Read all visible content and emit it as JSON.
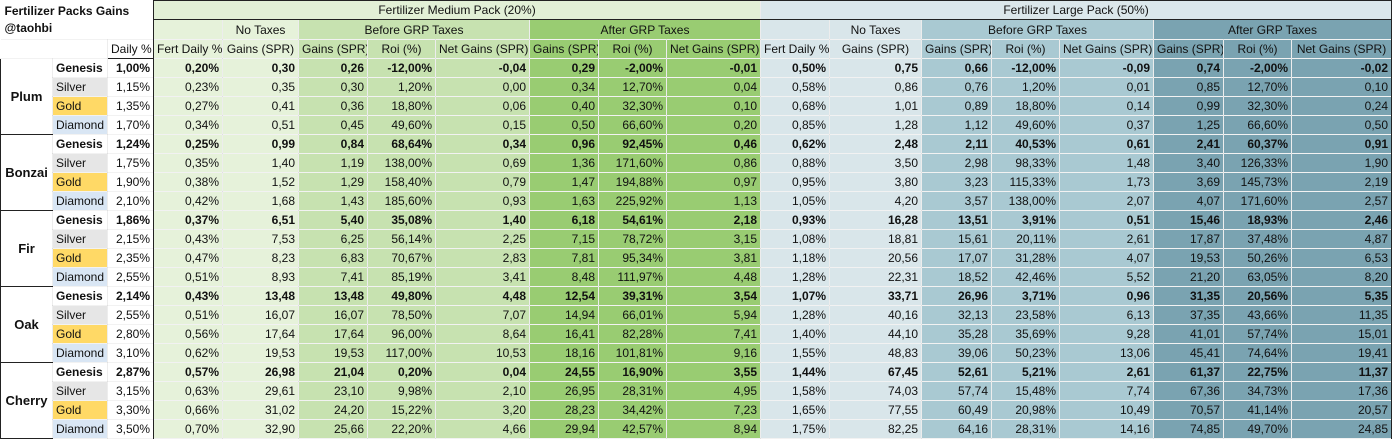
{
  "title": "Fertilizer Packs Gains",
  "author": "@taohbi",
  "daily_header": "Daily %",
  "medium_pack_title": "Fertilizer Medium Pack (20%)",
  "large_pack_title": "Fertilizer Large Pack (50%)",
  "group_headers": {
    "no_taxes": "No Taxes",
    "before": "Before GRP Taxes",
    "after": "After GRP Taxes"
  },
  "column_headers": [
    "Fert Daily %",
    "Gains (SPR)",
    "Gains (SPR)",
    "Roi (%)",
    "Net Gains (SPR)",
    "Gains (SPR)",
    "Roi (%)",
    "Net Gains (SPR)"
  ],
  "colors": {
    "medium_light": "#e6f2da",
    "medium_mid": "#c7e2b0",
    "medium_dark": "#99cc72",
    "large_light": "#d9e6ea",
    "large_mid": "#a9c9d2",
    "large_dark": "#7aa3b1",
    "gold": "#ffd966",
    "diamond": "#d9e6f4",
    "silver": "#e6e6e6"
  },
  "trees": [
    {
      "name": "Plum",
      "rows": [
        {
          "tier": "Genesis",
          "daily": "1,00%",
          "medium": [
            "0,20%",
            "0,30",
            "0,26",
            "-12,00%",
            "-0,04",
            "0,29",
            "-2,00%",
            "-0,01"
          ],
          "large": [
            "0,50%",
            "0,75",
            "0,66",
            "-12,00%",
            "-0,09",
            "0,74",
            "-2,00%",
            "-0,02"
          ]
        },
        {
          "tier": "Silver",
          "daily": "1,15%",
          "medium": [
            "0,23%",
            "0,35",
            "0,30",
            "1,20%",
            "0,00",
            "0,34",
            "12,70%",
            "0,04"
          ],
          "large": [
            "0,58%",
            "0,86",
            "0,76",
            "1,20%",
            "0,01",
            "0,85",
            "12,70%",
            "0,10"
          ]
        },
        {
          "tier": "Gold",
          "daily": "1,35%",
          "medium": [
            "0,27%",
            "0,41",
            "0,36",
            "18,80%",
            "0,06",
            "0,40",
            "32,30%",
            "0,10"
          ],
          "large": [
            "0,68%",
            "1,01",
            "0,89",
            "18,80%",
            "0,14",
            "0,99",
            "32,30%",
            "0,24"
          ]
        },
        {
          "tier": "Diamond",
          "daily": "1,70%",
          "medium": [
            "0,34%",
            "0,51",
            "0,45",
            "49,60%",
            "0,15",
            "0,50",
            "66,60%",
            "0,20"
          ],
          "large": [
            "0,85%",
            "1,28",
            "1,12",
            "49,60%",
            "0,37",
            "1,25",
            "66,60%",
            "0,50"
          ]
        }
      ]
    },
    {
      "name": "Bonzai",
      "rows": [
        {
          "tier": "Genesis",
          "daily": "1,24%",
          "medium": [
            "0,25%",
            "0,99",
            "0,84",
            "68,64%",
            "0,34",
            "0,96",
            "92,45%",
            "0,46"
          ],
          "large": [
            "0,62%",
            "2,48",
            "2,11",
            "40,53%",
            "0,61",
            "2,41",
            "60,37%",
            "0,91"
          ]
        },
        {
          "tier": "Silver",
          "daily": "1,75%",
          "medium": [
            "0,35%",
            "1,40",
            "1,19",
            "138,00%",
            "0,69",
            "1,36",
            "171,60%",
            "0,86"
          ],
          "large": [
            "0,88%",
            "3,50",
            "2,98",
            "98,33%",
            "1,48",
            "3,40",
            "126,33%",
            "1,90"
          ]
        },
        {
          "tier": "Gold",
          "daily": "1,90%",
          "medium": [
            "0,38%",
            "1,52",
            "1,29",
            "158,40%",
            "0,79",
            "1,47",
            "194,88%",
            "0,97"
          ],
          "large": [
            "0,95%",
            "3,80",
            "3,23",
            "115,33%",
            "1,73",
            "3,69",
            "145,73%",
            "2,19"
          ]
        },
        {
          "tier": "Diamond",
          "daily": "2,10%",
          "medium": [
            "0,42%",
            "1,68",
            "1,43",
            "185,60%",
            "0,93",
            "1,63",
            "225,92%",
            "1,13"
          ],
          "large": [
            "1,05%",
            "4,20",
            "3,57",
            "138,00%",
            "2,07",
            "4,07",
            "171,60%",
            "2,57"
          ]
        }
      ]
    },
    {
      "name": "Fir",
      "rows": [
        {
          "tier": "Genesis",
          "daily": "1,86%",
          "medium": [
            "0,37%",
            "6,51",
            "5,40",
            "35,08%",
            "1,40",
            "6,18",
            "54,61%",
            "2,18"
          ],
          "large": [
            "0,93%",
            "16,28",
            "13,51",
            "3,91%",
            "0,51",
            "15,46",
            "18,93%",
            "2,46"
          ]
        },
        {
          "tier": "Silver",
          "daily": "2,15%",
          "medium": [
            "0,43%",
            "7,53",
            "6,25",
            "56,14%",
            "2,25",
            "7,15",
            "78,72%",
            "3,15"
          ],
          "large": [
            "1,08%",
            "18,81",
            "15,61",
            "20,11%",
            "2,61",
            "17,87",
            "37,48%",
            "4,87"
          ]
        },
        {
          "tier": "Gold",
          "daily": "2,35%",
          "medium": [
            "0,47%",
            "8,23",
            "6,83",
            "70,67%",
            "2,83",
            "7,81",
            "95,34%",
            "3,81"
          ],
          "large": [
            "1,18%",
            "20,56",
            "17,07",
            "31,28%",
            "4,07",
            "19,53",
            "50,26%",
            "6,53"
          ]
        },
        {
          "tier": "Diamond",
          "daily": "2,55%",
          "medium": [
            "0,51%",
            "8,93",
            "7,41",
            "85,19%",
            "3,41",
            "8,48",
            "111,97%",
            "4,48"
          ],
          "large": [
            "1,28%",
            "22,31",
            "18,52",
            "42,46%",
            "5,52",
            "21,20",
            "63,05%",
            "8,20"
          ]
        }
      ]
    },
    {
      "name": "Oak",
      "rows": [
        {
          "tier": "Genesis",
          "daily": "2,14%",
          "medium": [
            "0,43%",
            "13,48",
            "13,48",
            "49,80%",
            "4,48",
            "12,54",
            "39,31%",
            "3,54"
          ],
          "large": [
            "1,07%",
            "33,71",
            "26,96",
            "3,71%",
            "0,96",
            "31,35",
            "20,56%",
            "5,35"
          ]
        },
        {
          "tier": "Silver",
          "daily": "2,55%",
          "medium": [
            "0,51%",
            "16,07",
            "16,07",
            "78,50%",
            "7,07",
            "14,94",
            "66,01%",
            "5,94"
          ],
          "large": [
            "1,28%",
            "40,16",
            "32,13",
            "23,58%",
            "6,13",
            "37,35",
            "43,66%",
            "11,35"
          ]
        },
        {
          "tier": "Gold",
          "daily": "2,80%",
          "medium": [
            "0,56%",
            "17,64",
            "17,64",
            "96,00%",
            "8,64",
            "16,41",
            "82,28%",
            "7,41"
          ],
          "large": [
            "1,40%",
            "44,10",
            "35,28",
            "35,69%",
            "9,28",
            "41,01",
            "57,74%",
            "15,01"
          ]
        },
        {
          "tier": "Diamond",
          "daily": "3,10%",
          "medium": [
            "0,62%",
            "19,53",
            "19,53",
            "117,00%",
            "10,53",
            "18,16",
            "101,81%",
            "9,16"
          ],
          "large": [
            "1,55%",
            "48,83",
            "39,06",
            "50,23%",
            "13,06",
            "45,41",
            "74,64%",
            "19,41"
          ]
        }
      ]
    },
    {
      "name": "Cherry",
      "rows": [
        {
          "tier": "Genesis",
          "daily": "2,87%",
          "medium": [
            "0,57%",
            "26,98",
            "21,04",
            "0,20%",
            "0,04",
            "24,55",
            "16,90%",
            "3,55"
          ],
          "large": [
            "1,44%",
            "67,45",
            "52,61",
            "5,21%",
            "2,61",
            "61,37",
            "22,75%",
            "11,37"
          ]
        },
        {
          "tier": "Silver",
          "daily": "3,15%",
          "medium": [
            "0,63%",
            "29,61",
            "23,10",
            "9,98%",
            "2,10",
            "26,95",
            "28,31%",
            "4,95"
          ],
          "large": [
            "1,58%",
            "74,03",
            "57,74",
            "15,48%",
            "7,74",
            "67,36",
            "34,73%",
            "17,36"
          ]
        },
        {
          "tier": "Gold",
          "daily": "3,30%",
          "medium": [
            "0,66%",
            "31,02",
            "24,20",
            "15,22%",
            "3,20",
            "28,23",
            "34,42%",
            "7,23"
          ],
          "large": [
            "1,65%",
            "77,55",
            "60,49",
            "20,98%",
            "10,49",
            "70,57",
            "41,14%",
            "20,57"
          ]
        },
        {
          "tier": "Diamond",
          "daily": "3,50%",
          "medium": [
            "0,70%",
            "32,90",
            "25,66",
            "22,20%",
            "4,66",
            "29,94",
            "42,57%",
            "8,94"
          ],
          "large": [
            "1,75%",
            "82,25",
            "64,16",
            "28,31%",
            "14,16",
            "74,85",
            "49,70%",
            "24,85"
          ]
        }
      ]
    }
  ]
}
